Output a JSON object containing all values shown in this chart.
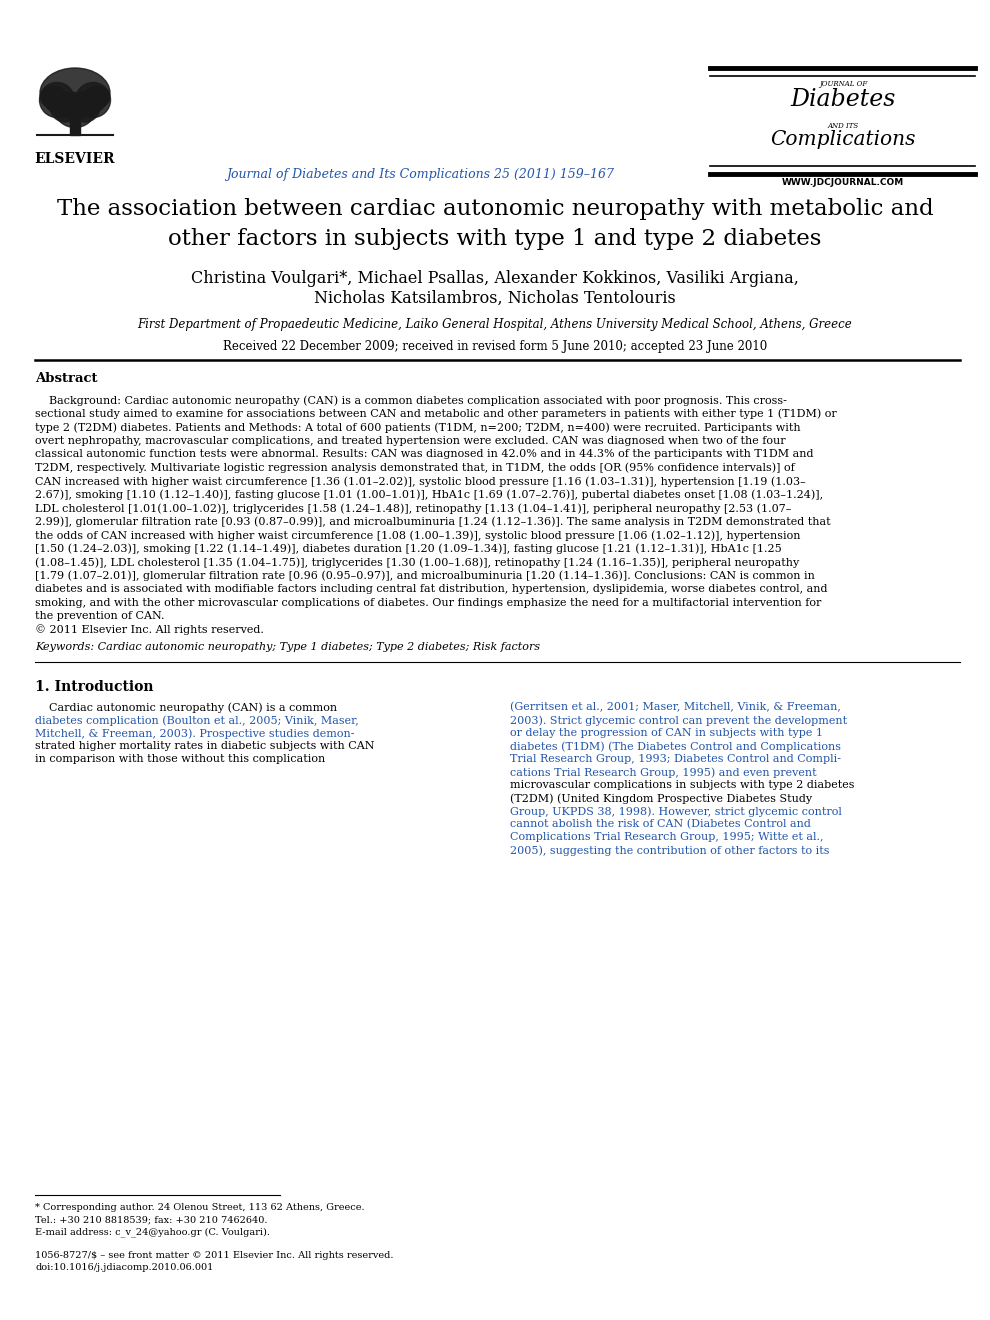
{
  "title_line1": "The association between cardiac autonomic neuropathy with metabolic and",
  "title_line2": "other factors in subjects with type 1 and type 2 diabetes",
  "authors_line1": "Christina Voulgari*, Michael Psallas, Alexander Kokkinos, Vasiliki Argiana,",
  "authors_line2": "Nicholas Katsilambros, Nicholas Tentolouris",
  "affiliation": "First Department of Propaedeutic Medicine, Laiko General Hospital, Athens University Medical School, Athens, Greece",
  "received": "Received 22 December 2009; received in revised form 5 June 2010; accepted 23 June 2010",
  "journal_name": "Journal of Diabetes and Its Complications 25 (2011) 159–167",
  "journal_logo_line1": "JOURNAL OF",
  "journal_logo_line2": "Diabetes",
  "journal_logo_line3": "AND ITS",
  "journal_logo_line4": "Complications",
  "journal_url": "WWW.JDCJOURNAL.COM",
  "elsevier_text": "ELSEVIER",
  "abstract_title": "Abstract",
  "keywords_label": "Keywords:",
  "keywords": "Cardiac autonomic neuropathy; Type 1 diabetes; Type 2 diabetes; Risk factors",
  "section1_title": "1. Introduction",
  "footnote1": "* Corresponding author. 24 Olenou Street, 113 62 Athens, Greece.",
  "footnote2": "Tel.: +30 210 8818539; fax: +30 210 7462640.",
  "footnote3": "E-mail address: c_v_24@yahoo.gr (C. Voulgari).",
  "footnote4": "1056-8727/$ – see front matter © 2011 Elsevier Inc. All rights reserved.",
  "footnote5": "doi:10.1016/j.jdiacomp.2010.06.001",
  "bg_color": "#ffffff",
  "text_color": "#000000",
  "blue_color": "#2255aa",
  "red_color": "#cc2222",
  "abstract_lines": [
    "    Background: Cardiac autonomic neuropathy (CAN) is a common diabetes complication associated with poor prognosis. This cross-",
    "sectional study aimed to examine for associations between CAN and metabolic and other parameters in patients with either type 1 (T1DM) or",
    "type 2 (T2DM) diabetes. Patients and Methods: A total of 600 patients (T1DM, n=200; T2DM, n=400) were recruited. Participants with",
    "overt nephropathy, macrovascular complications, and treated hypertension were excluded. CAN was diagnosed when two of the four",
    "classical autonomic function tests were abnormal. Results: CAN was diagnosed in 42.0% and in 44.3% of the participants with T1DM and",
    "T2DM, respectively. Multivariate logistic regression analysis demonstrated that, in T1DM, the odds [OR (95% confidence intervals)] of",
    "CAN increased with higher waist circumference [1.36 (1.01–2.02)], systolic blood pressure [1.16 (1.03–1.31)], hypertension [1.19 (1.03–",
    "2.67)], smoking [1.10 (1.12–1.40)], fasting glucose [1.01 (1.00–1.01)], HbA1c [1.69 (1.07–2.76)], pubertal diabetes onset [1.08 (1.03–1.24)],",
    "LDL cholesterol [1.01(1.00–1.02)], triglycerides [1.58 (1.24–1.48)], retinopathy [1.13 (1.04–1.41)], peripheral neuropathy [2.53 (1.07–",
    "2.99)], glomerular filtration rate [0.93 (0.87–0.99)], and microalbuminuria [1.24 (1.12–1.36)]. The same analysis in T2DM demonstrated that",
    "the odds of CAN increased with higher waist circumference [1.08 (1.00–1.39)], systolic blood pressure [1.06 (1.02–1.12)], hypertension",
    "[1.50 (1.24–2.03)], smoking [1.22 (1.14–1.49)], diabetes duration [1.20 (1.09–1.34)], fasting glucose [1.21 (1.12–1.31)], HbA1c [1.25",
    "(1.08–1.45)], LDL cholesterol [1.35 (1.04–1.75)], triglycerides [1.30 (1.00–1.68)], retinopathy [1.24 (1.16–1.35)], peripheral neuropathy",
    "[1.79 (1.07–2.01)], glomerular filtration rate [0.96 (0.95–0.97)], and microalbuminuria [1.20 (1.14–1.36)]. Conclusions: CAN is common in",
    "diabetes and is associated with modifiable factors including central fat distribution, hypertension, dyslipidemia, worse diabetes control, and",
    "smoking, and with the other microvascular complications of diabetes. Our findings emphasize the need for a multifactorial intervention for",
    "the prevention of CAN.",
    "© 2011 Elsevier Inc. All rights reserved."
  ],
  "intro_col1_lines": [
    "    Cardiac autonomic neuropathy (CAN) is a common",
    "diabetes complication (Boulton et al., 2005; Vinik, Maser,",
    "Mitchell, & Freeman, 2003). Prospective studies demon-",
    "strated higher mortality rates in diabetic subjects with CAN",
    "in comparison with those without this complication"
  ],
  "intro_col2_lines": [
    "(Gerritsen et al., 2001; Maser, Mitchell, Vinik, & Freeman,",
    "2003). Strict glycemic control can prevent the development",
    "or delay the progression of CAN in subjects with type 1",
    "diabetes (T1DM) (The Diabetes Control and Complications",
    "Trial Research Group, 1993; Diabetes Control and Compli-",
    "cations Trial Research Group, 1995) and even prevent",
    "microvascular complications in subjects with type 2 diabetes",
    "(T2DM) (United Kingdom Prospective Diabetes Study",
    "Group, UKPDS 38, 1998). However, strict glycemic control",
    "cannot abolish the risk of CAN (Diabetes Control and",
    "Complications Trial Research Group, 1995; Witte et al.,",
    "2005), suggesting the contribution of other factors to its"
  ],
  "intro_col2_blue_lines": [
    0,
    1,
    2,
    3,
    4,
    5,
    8,
    9,
    10,
    11
  ],
  "intro_col1_blue_lines": [
    1,
    2
  ]
}
